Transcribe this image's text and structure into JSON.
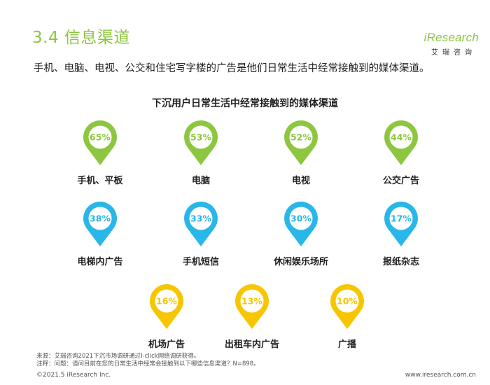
{
  "page": {
    "title": "3.4 信息渠道",
    "subtitle": "手机、电脑、电视、公交和住宅写字楼的广告是他们日常生活中经常接触到的媒体渠道。",
    "logo": {
      "main": "iResearch",
      "sub": "艾瑞咨询"
    },
    "footer": {
      "source": "来源：艾瑞咨询2021下沉市场调研通过I-click网络调研获得。",
      "note": "注释：问题：请问目前在您的日常生活中经常会接触到以下哪些信息渠道？N=898。",
      "copyright": "©2021.5 iResearch Inc.",
      "url": "www.iresearch.com.cn"
    }
  },
  "chart_data": {
    "type": "bar",
    "title": "下沉用户日常生活中经常接触到的媒体渠道",
    "categories": [
      "手机、平板",
      "电脑",
      "电视",
      "公交广告",
      "电梯内广告",
      "手机短信",
      "休闲娱乐场所",
      "报纸杂志",
      "机场广告",
      "出租车内广告",
      "广播"
    ],
    "values": [
      65,
      53,
      52,
      44,
      38,
      33,
      30,
      17,
      16,
      13,
      10
    ],
    "value_labels": [
      "65%",
      "53%",
      "52%",
      "44%",
      "38%",
      "33%",
      "30%",
      "17%",
      "16%",
      "13%",
      "10%"
    ],
    "unit": "%",
    "rows": [
      4,
      4,
      3
    ],
    "colors": [
      "#8dc63f",
      "#29b6e8",
      "#f7c600"
    ]
  }
}
